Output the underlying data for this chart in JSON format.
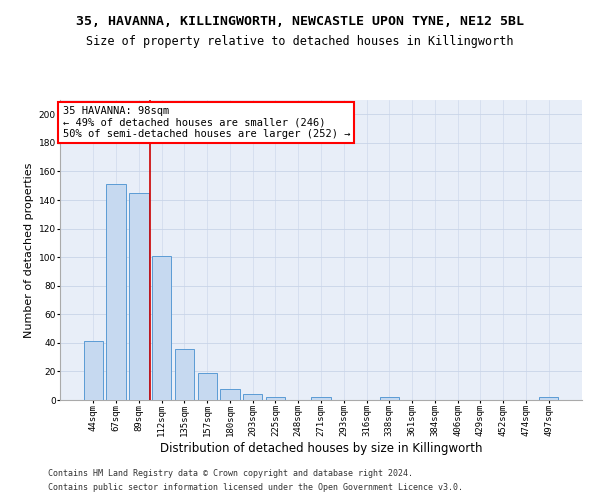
{
  "title": "35, HAVANNA, KILLINGWORTH, NEWCASTLE UPON TYNE, NE12 5BL",
  "subtitle": "Size of property relative to detached houses in Killingworth",
  "xlabel": "Distribution of detached houses by size in Killingworth",
  "ylabel": "Number of detached properties",
  "bar_labels": [
    "44sqm",
    "67sqm",
    "89sqm",
    "112sqm",
    "135sqm",
    "157sqm",
    "180sqm",
    "203sqm",
    "225sqm",
    "248sqm",
    "271sqm",
    "293sqm",
    "316sqm",
    "338sqm",
    "361sqm",
    "384sqm",
    "406sqm",
    "429sqm",
    "452sqm",
    "474sqm",
    "497sqm"
  ],
  "bar_values": [
    41,
    151,
    145,
    101,
    36,
    19,
    8,
    4,
    2,
    0,
    2,
    0,
    0,
    2,
    0,
    0,
    0,
    0,
    0,
    0,
    2
  ],
  "bar_color": "#c6d9f0",
  "bar_edgecolor": "#5b9bd5",
  "background_color": "#ffffff",
  "axes_facecolor": "#e8eef8",
  "grid_color": "#c8d4e8",
  "annotation_text": "35 HAVANNA: 98sqm\n← 49% of detached houses are smaller (246)\n50% of semi-detached houses are larger (252) →",
  "vline_x": 2.5,
  "vline_color": "#cc0000",
  "ylim": [
    0,
    210
  ],
  "yticks": [
    0,
    20,
    40,
    60,
    80,
    100,
    120,
    140,
    160,
    180,
    200
  ],
  "footer1": "Contains HM Land Registry data © Crown copyright and database right 2024.",
  "footer2": "Contains public sector information licensed under the Open Government Licence v3.0.",
  "title_fontsize": 9.5,
  "subtitle_fontsize": 8.5,
  "xlabel_fontsize": 8.5,
  "ylabel_fontsize": 8,
  "tick_fontsize": 6.5,
  "annotation_fontsize": 7.5,
  "footer_fontsize": 6
}
